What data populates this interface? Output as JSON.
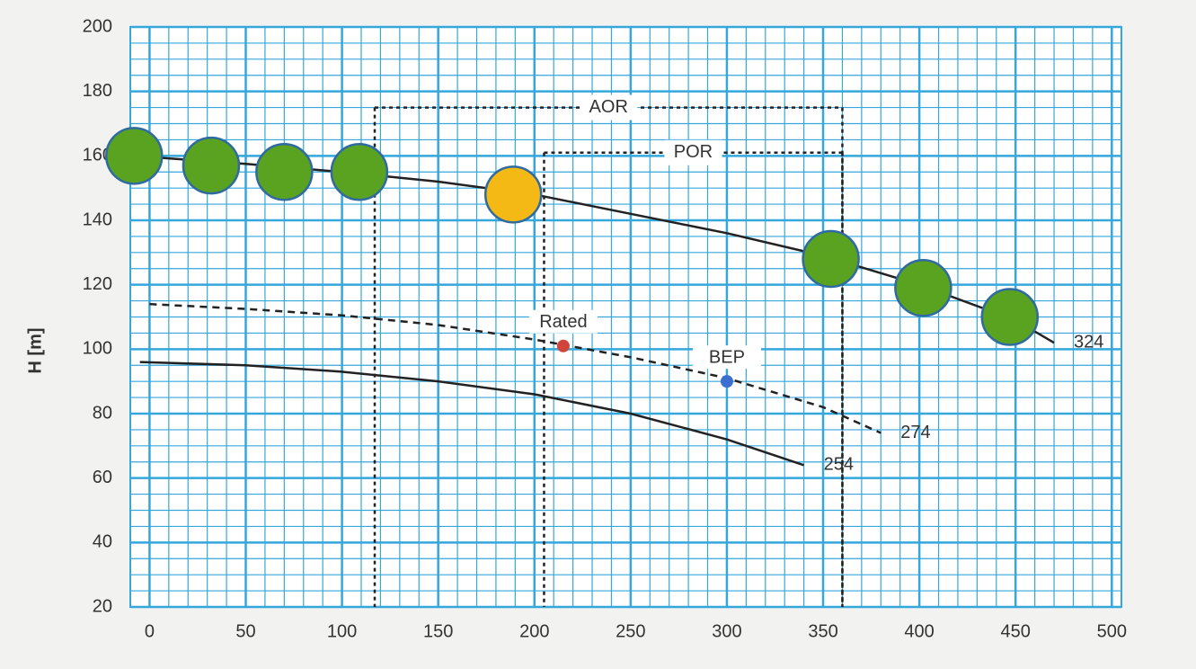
{
  "chart_data": {
    "type": "line",
    "y_label": "H [m]",
    "xlim": [
      -10,
      505
    ],
    "ylim": [
      20,
      200
    ],
    "xticks": [
      0,
      50,
      100,
      150,
      200,
      250,
      300,
      350,
      400,
      450,
      500
    ],
    "yticks": [
      20,
      40,
      60,
      80,
      100,
      120,
      140,
      160,
      180,
      200
    ],
    "grid": true,
    "grid_color": "#35a7dc",
    "series": [
      {
        "name": "324",
        "color": "#222222",
        "dashed": false,
        "x": [
          -8,
          50,
          100,
          150,
          200,
          250,
          300,
          350,
          400,
          450,
          470
        ],
        "values": [
          160,
          157.5,
          155,
          152,
          148,
          142,
          136,
          129,
          120,
          109,
          102
        ]
      },
      {
        "name": "274",
        "color": "#222222",
        "dashed": true,
        "x": [
          0,
          50,
          100,
          150,
          200,
          250,
          300,
          350,
          380
        ],
        "values": [
          114,
          112.5,
          110.5,
          107.5,
          103,
          97.5,
          91,
          82,
          74
        ]
      },
      {
        "name": "254",
        "color": "#222222",
        "dashed": false,
        "x": [
          -5,
          50,
          100,
          150,
          200,
          250,
          300,
          340
        ],
        "values": [
          96,
          95,
          93,
          90,
          86,
          80,
          72,
          64
        ]
      }
    ],
    "points": [
      {
        "x": -8,
        "y": 160,
        "color": "#5aa321"
      },
      {
        "x": 32,
        "y": 157,
        "color": "#5aa321"
      },
      {
        "x": 70,
        "y": 155,
        "color": "#5aa321"
      },
      {
        "x": 109,
        "y": 155,
        "color": "#5aa321"
      },
      {
        "x": 189,
        "y": 148,
        "color": "#f5b915"
      },
      {
        "x": 354,
        "y": 128,
        "color": "#5aa321"
      },
      {
        "x": 402,
        "y": 119,
        "color": "#5aa321"
      },
      {
        "x": 447,
        "y": 110,
        "color": "#5aa321"
      }
    ],
    "annotations": [
      {
        "label": "Rated",
        "x": 215,
        "y": 101,
        "color": "#d0443c"
      },
      {
        "label": "BEP",
        "x": 300,
        "y": 90,
        "color": "#3a6fd0"
      }
    ],
    "ranges": [
      {
        "label": "AOR",
        "x": [
          117,
          360
        ],
        "y": 175
      },
      {
        "label": "POR",
        "x": [
          205,
          360
        ],
        "y": 161
      }
    ]
  }
}
